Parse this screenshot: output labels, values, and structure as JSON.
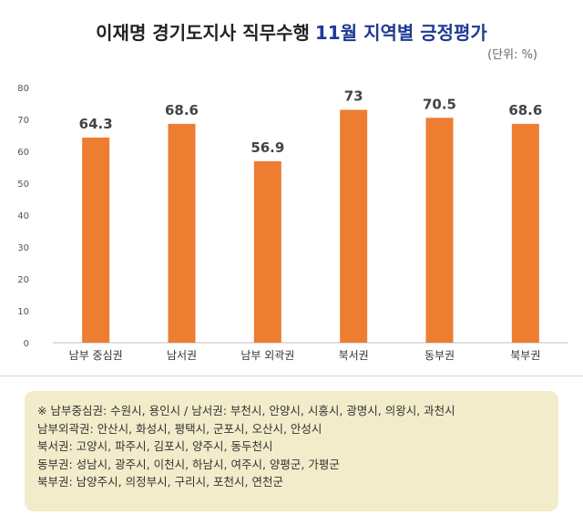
{
  "header": {
    "title_main": "이재명 경기도지사 직무수행",
    "title_highlight": "11월 지역별 긍정평가",
    "unit": "(단위: %)"
  },
  "colors": {
    "bar": "#ed7d31",
    "title_highlight": "#1f3a93",
    "note_bg": "#f2ecca"
  },
  "chart_data": {
    "type": "bar",
    "categories": [
      "남부 중심권",
      "남서권",
      "남부 외곽권",
      "북서권",
      "동부권",
      "북부권"
    ],
    "values": [
      64.3,
      68.6,
      56.9,
      73,
      70.5,
      68.6
    ],
    "value_labels": [
      "64.3",
      "68.6",
      "56.9",
      "73",
      "70.5",
      "68.6"
    ],
    "ylim": [
      0,
      80
    ],
    "yticks": [
      0,
      10,
      20,
      30,
      40,
      50,
      60,
      70,
      80
    ],
    "grid": false,
    "legend": false
  },
  "notes": [
    "※ 남부중심권: 수원시, 용인시  /  남서권: 부천시, 안양시, 시흥시, 광명시, 의왕시, 과천시",
    "남부외곽권: 안산시, 화성시, 평택시, 군포시, 오산시, 안성시",
    "북서권: 고양시, 파주시, 김포시, 양주시, 동두천시",
    "동부권: 성남시, 광주시, 이천시, 하남시, 여주시, 양평군, 가평군",
    "북부권: 남양주시, 의정부시, 구리시, 포천시, 연천군"
  ]
}
